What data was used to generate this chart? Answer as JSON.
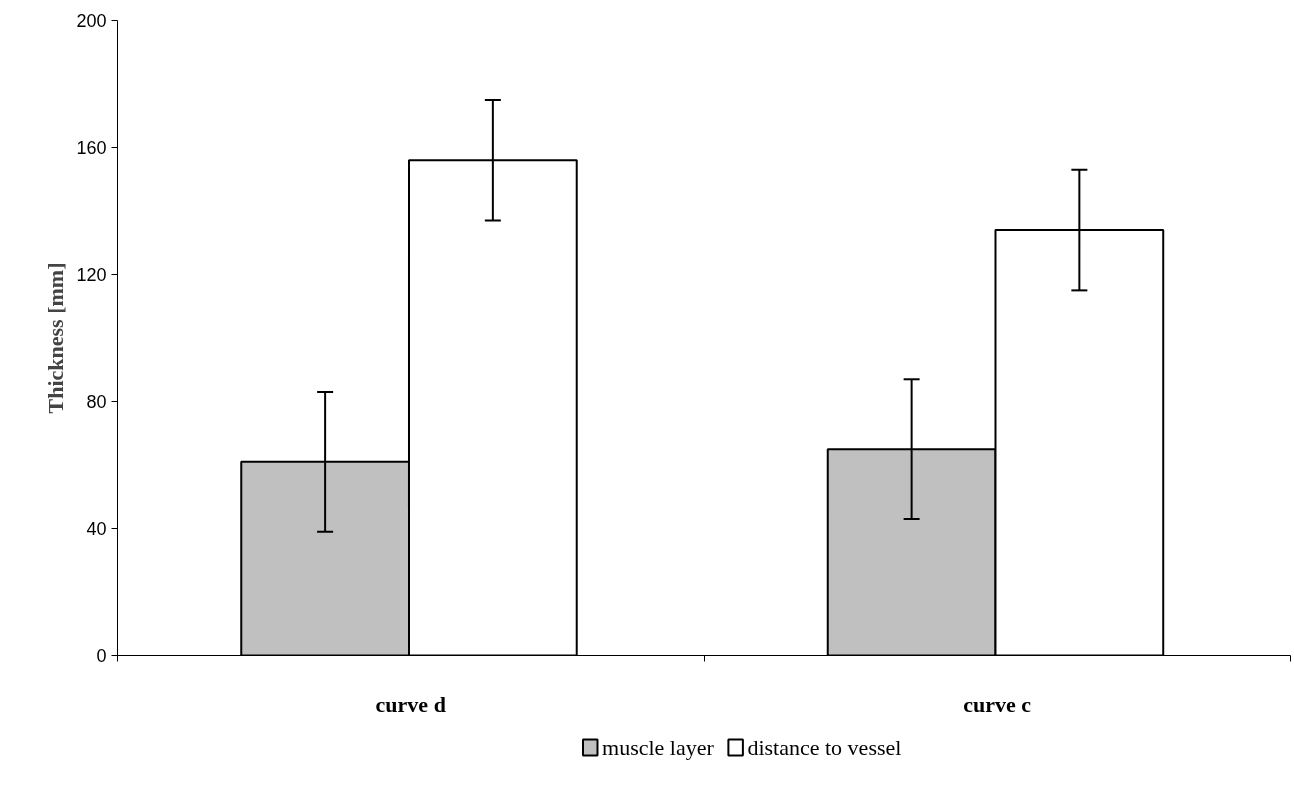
{
  "chart_data": {
    "type": "bar",
    "ylabel": "Thickness [mm]",
    "categories": [
      "curve d",
      "curve c"
    ],
    "series": [
      {
        "name": "muscle layer",
        "color": "#c0c0c0",
        "values": [
          61,
          65
        ],
        "errors": [
          22,
          22
        ]
      },
      {
        "name": "distance to vessel",
        "color": "#ffffff",
        "values": [
          156,
          134
        ],
        "errors": [
          19,
          19
        ]
      }
    ],
    "ylim": [
      0,
      200
    ],
    "yticks": [
      0,
      40,
      80,
      120,
      160,
      200
    ],
    "grid": false,
    "legend": "bottom"
  }
}
